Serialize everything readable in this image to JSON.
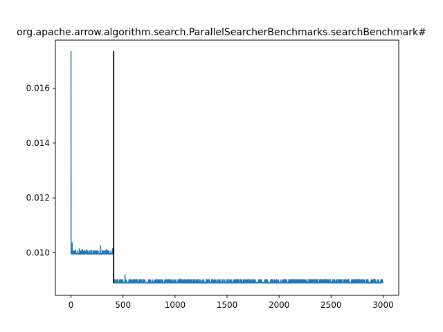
{
  "chart_data": {
    "type": "line",
    "title": "org.apache.arrow.algorithm.search.ParallelSearcherBenchmarks.searchBenchmark#",
    "xlabel": "",
    "ylabel": "",
    "xlim": [
      -150,
      3150
    ],
    "ylim": [
      0.00845,
      0.01775
    ],
    "x_ticks": [
      0,
      500,
      1000,
      1500,
      2000,
      2500,
      3000
    ],
    "y_ticks": [
      0.01,
      0.012,
      0.014,
      0.016
    ],
    "x_tick_labels": [
      "0",
      "500",
      "1000",
      "1500",
      "2000",
      "2500",
      "3000"
    ],
    "y_tick_labels": [
      "0.010",
      "0.012",
      "0.014",
      "0.016"
    ],
    "grid": false,
    "series": [
      {
        "color": "#1f77b4",
        "segments": [
          {
            "x_start": 0,
            "x_end": 410,
            "base": 0.00995,
            "noise": 7e-05,
            "spikes": [
              [
                0,
                0.01735
              ],
              [
                2,
                0.0101
              ],
              [
                5,
                0.01002
              ],
              [
                12,
                0.01037
              ],
              [
                45,
                0.0101
              ],
              [
                80,
                0.01015
              ],
              [
                110,
                0.01012
              ],
              [
                150,
                0.01012
              ],
              [
                200,
                0.0101
              ],
              [
                285,
                0.01027
              ],
              [
                340,
                0.01012
              ],
              [
                400,
                0.01015
              ]
            ]
          },
          {
            "x_start": 410,
            "x_end": 3000,
            "base": 0.0089,
            "noise": 7e-05,
            "spikes": [
              [
                410,
                0.0099
              ],
              [
                520,
                0.0092
              ],
              [
                1050,
                0.00905
              ],
              [
                2920,
                0.00905
              ]
            ]
          }
        ]
      }
    ],
    "vline": {
      "x": 410,
      "ymin": 0.0089,
      "ymax": 0.01735,
      "color": "#000000"
    }
  }
}
